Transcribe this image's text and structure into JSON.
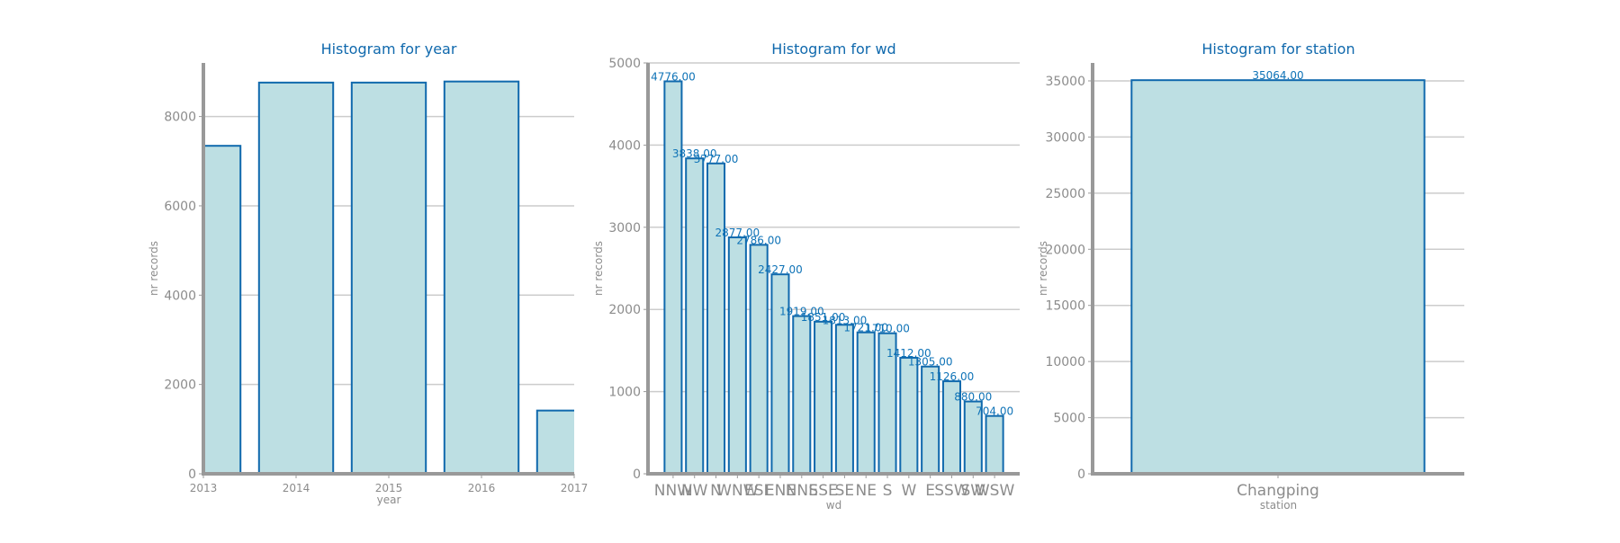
{
  "colors": {
    "bar_fill": "#bddfe3",
    "bar_stroke": "#1069ad",
    "title": "#1069ad",
    "axis": "#999999",
    "grid": "#cccccc",
    "tick_text": "#8c8c8c",
    "value_label": "#0f73b7"
  },
  "chart_data": [
    {
      "type": "bar",
      "title": "Histogram for year",
      "xlabel": "year",
      "ylabel": "nr records",
      "x_ticks": [
        "2013",
        "2014",
        "2015",
        "2016",
        "2017"
      ],
      "x_range": [
        2013,
        2017
      ],
      "bins": [
        {
          "start": 2012.6,
          "end": 2013.4,
          "value": 7344
        },
        {
          "start": 2013.6,
          "end": 2014.4,
          "value": 8760
        },
        {
          "start": 2014.6,
          "end": 2015.4,
          "value": 8760
        },
        {
          "start": 2015.6,
          "end": 2016.4,
          "value": 8784
        },
        {
          "start": 2016.6,
          "end": 2017.4,
          "value": 1416
        }
      ],
      "y_ticks": [
        "0",
        "2000",
        "4000",
        "6000",
        "8000"
      ],
      "ylim": [
        0,
        9200
      ],
      "grid": true
    },
    {
      "type": "bar",
      "title": "Histogram for wd",
      "xlabel": "wd",
      "ylabel": "nr records",
      "categories": [
        "NNW",
        "NW",
        "N",
        "WNW",
        "ESE",
        "ENE",
        "NNE",
        "SSE",
        "SE",
        "NE",
        "S",
        "W",
        "E",
        "SSW",
        "SW",
        "WSW"
      ],
      "values": [
        4776,
        3838,
        3777,
        2877,
        2786,
        2427,
        1919,
        1851,
        1813,
        1721,
        1710,
        1412,
        1305,
        1126,
        880,
        704
      ],
      "value_labels": [
        "4776.00",
        "3838.00",
        "3777.00",
        "2877.00",
        "2786.00",
        "2427.00",
        "1919.00",
        "1851.00",
        "1813.00",
        "1721.00",
        "1710.00",
        "1412.00",
        "1305.00",
        "1126.00",
        "880.00",
        "704.00"
      ],
      "y_ticks": [
        "0",
        "1000",
        "2000",
        "3000",
        "4000",
        "5000"
      ],
      "ylim": [
        0,
        5000
      ],
      "grid": true
    },
    {
      "type": "bar",
      "title": "Histogram for station",
      "xlabel": "station",
      "ylabel": "nr records",
      "categories": [
        "Changping"
      ],
      "values": [
        35064
      ],
      "value_labels": [
        "35064.00"
      ],
      "y_ticks": [
        "0",
        "5000",
        "10000",
        "15000",
        "20000",
        "25000",
        "30000",
        "35000"
      ],
      "ylim": [
        0,
        36600
      ],
      "grid": true
    }
  ]
}
